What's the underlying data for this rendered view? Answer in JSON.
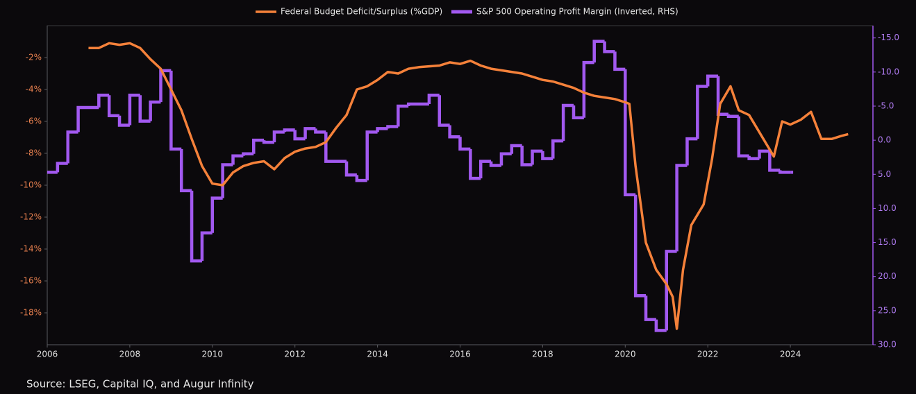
{
  "chart_data": {
    "type": "line",
    "source": "Source: LSEG, Capital IQ, and Augur Infinity",
    "xlim": [
      2006,
      2026
    ],
    "xticks": [
      2006,
      2008,
      2010,
      2012,
      2014,
      2016,
      2018,
      2020,
      2022,
      2024
    ],
    "ylim": [
      -20,
      0
    ],
    "yticks": [
      {
        "value": -2,
        "label": "-2%"
      },
      {
        "value": -4,
        "label": "-4%"
      },
      {
        "value": -6,
        "label": "-6%"
      },
      {
        "value": -8,
        "label": "-8%"
      },
      {
        "value": -10,
        "label": "-10%"
      },
      {
        "value": -12,
        "label": "-12%"
      },
      {
        "value": -14,
        "label": "-14%"
      },
      {
        "value": -16,
        "label": "-16%"
      },
      {
        "value": -18,
        "label": "-18%"
      }
    ],
    "y2lim": [
      30,
      -16.8
    ],
    "y2ticks": [
      {
        "value": -15,
        "label": "-15.0"
      },
      {
        "value": -10,
        "label": "-10.0"
      },
      {
        "value": -5,
        "label": "-5.0"
      },
      {
        "value": 0,
        "label": "0.0"
      },
      {
        "value": 5,
        "label": "5.0"
      },
      {
        "value": 10,
        "label": "10.0"
      },
      {
        "value": 15,
        "label": "15.0"
      },
      {
        "value": 20,
        "label": "20.0"
      },
      {
        "value": 25,
        "label": "25.0"
      },
      {
        "value": 30,
        "label": "30.0"
      }
    ],
    "legend": "top",
    "series": [
      {
        "name": "Federal Budget Deficit/Surplus (%GDP)",
        "color": "#f5813a",
        "axis": "y",
        "x": [
          2007.0,
          2007.25,
          2007.5,
          2007.75,
          2008.0,
          2008.25,
          2008.5,
          2008.75,
          2009.0,
          2009.25,
          2009.5,
          2009.75,
          2010.0,
          2010.25,
          2010.5,
          2010.75,
          2011.0,
          2011.25,
          2011.5,
          2011.75,
          2012.0,
          2012.25,
          2012.5,
          2012.75,
          2013.0,
          2013.25,
          2013.5,
          2013.75,
          2014.0,
          2014.25,
          2014.5,
          2014.75,
          2015.0,
          2015.5,
          2015.75,
          2016.0,
          2016.25,
          2016.5,
          2016.75,
          2017.0,
          2017.5,
          2017.75,
          2018.0,
          2018.25,
          2018.5,
          2018.75,
          2019.0,
          2019.25,
          2019.5,
          2019.75,
          2020.0,
          2020.1,
          2020.25,
          2020.5,
          2020.75,
          2021.0,
          2021.15,
          2021.25,
          2021.4,
          2021.6,
          2021.9,
          2022.1,
          2022.3,
          2022.55,
          2022.75,
          2023.0,
          2023.3,
          2023.6,
          2023.8,
          2024.0,
          2024.25,
          2024.5,
          2024.75,
          2025.0,
          2025.25,
          2025.4
        ],
        "values": [
          -1.4,
          -1.4,
          -1.1,
          -1.2,
          -1.1,
          -1.4,
          -2.1,
          -2.7,
          -4.0,
          -5.3,
          -7.1,
          -8.8,
          -9.9,
          -10.0,
          -9.2,
          -8.8,
          -8.6,
          -8.5,
          -9.0,
          -8.3,
          -7.9,
          -7.7,
          -7.6,
          -7.3,
          -6.4,
          -5.6,
          -4.0,
          -3.8,
          -3.4,
          -2.9,
          -3.0,
          -2.7,
          -2.6,
          -2.5,
          -2.3,
          -2.4,
          -2.2,
          -2.5,
          -2.7,
          -2.8,
          -3.0,
          -3.2,
          -3.4,
          -3.5,
          -3.7,
          -3.9,
          -4.2,
          -4.4,
          -4.5,
          -4.6,
          -4.8,
          -4.9,
          -8.8,
          -13.6,
          -15.3,
          -16.2,
          -17.0,
          -19.0,
          -15.3,
          -12.5,
          -11.2,
          -8.4,
          -4.9,
          -3.8,
          -5.3,
          -5.6,
          -6.9,
          -8.2,
          -6.0,
          -6.2,
          -5.9,
          -5.4,
          -7.1,
          -7.1,
          -6.9,
          -6.8
        ]
      },
      {
        "name": "S&P 500 Operating Profit Margin (Inverted, RHS)",
        "color": "#a259f0",
        "axis": "y2",
        "step": true,
        "x": [
          2006.0,
          2006.25,
          2006.5,
          2006.75,
          2007.25,
          2007.5,
          2007.75,
          2008.0,
          2008.25,
          2008.5,
          2008.75,
          2009.0,
          2009.25,
          2009.5,
          2009.75,
          2010.0,
          2010.25,
          2010.5,
          2010.75,
          2011.0,
          2011.25,
          2011.5,
          2011.75,
          2012.0,
          2012.25,
          2012.5,
          2012.75,
          2013.25,
          2013.5,
          2013.75,
          2014.0,
          2014.25,
          2014.5,
          2014.75,
          2015.25,
          2015.5,
          2015.75,
          2016.0,
          2016.25,
          2016.5,
          2016.75,
          2017.0,
          2017.25,
          2017.5,
          2017.75,
          2018.0,
          2018.25,
          2018.5,
          2018.75,
          2019.0,
          2019.25,
          2019.5,
          2019.75,
          2020.0,
          2020.25,
          2020.5,
          2020.75,
          2021.0,
          2021.25,
          2021.5,
          2021.75,
          2022.0,
          2022.25,
          2022.5,
          2022.75,
          2023.0,
          2023.25,
          2023.5,
          2023.75,
          2024.0
        ],
        "values": [
          4.7,
          3.4,
          -1.2,
          -4.8,
          -6.6,
          -3.6,
          -2.2,
          -6.6,
          -2.8,
          -5.6,
          -10.2,
          1.3,
          7.4,
          17.7,
          13.6,
          8.5,
          3.6,
          2.3,
          2.0,
          0.0,
          0.3,
          -1.2,
          -1.5,
          -0.2,
          -1.7,
          -1.2,
          3.1,
          5.1,
          5.9,
          -1.2,
          -1.7,
          -2.0,
          -5.0,
          -5.3,
          -6.6,
          -2.2,
          -0.5,
          1.3,
          5.6,
          3.1,
          3.7,
          2.0,
          0.8,
          3.6,
          1.6,
          2.7,
          0.1,
          -5.1,
          -3.3,
          -11.4,
          -14.5,
          -13.0,
          -10.4,
          8.0,
          22.8,
          26.3,
          27.9,
          16.3,
          3.7,
          -0.2,
          -7.9,
          -9.4,
          -3.8,
          -3.5,
          2.3,
          2.7,
          1.6,
          4.4,
          4.7,
          4.7
        ]
      }
    ]
  }
}
